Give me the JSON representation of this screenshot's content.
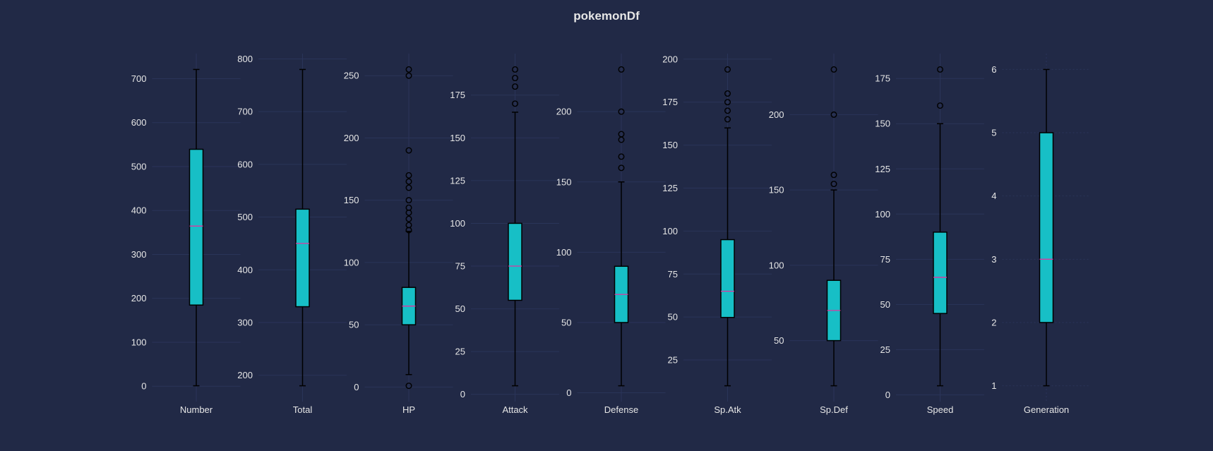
{
  "chart_data": {
    "type": "boxplot",
    "title": "pokemonDf",
    "colors": {
      "background": "#212946",
      "grid": "#2A3459",
      "box": "#17BFC6",
      "median": "#E0359F",
      "line": "#000000",
      "text": "#E6E6E6"
    },
    "panels": [
      {
        "label": "Number",
        "whislo": 1,
        "q1": 184.75,
        "med": 364.5,
        "q3": 539.25,
        "whishi": 721,
        "fliers": [],
        "ylim": [
          -35,
          757
        ],
        "ticks": [
          0,
          100,
          200,
          300,
          400,
          500,
          600,
          700
        ]
      },
      {
        "label": "Total",
        "whislo": 180,
        "q1": 330,
        "med": 450,
        "q3": 515,
        "whishi": 780,
        "fliers": [],
        "ylim": [
          150,
          810
        ],
        "ticks": [
          200,
          300,
          400,
          500,
          600,
          700,
          800
        ]
      },
      {
        "label": "HP",
        "whislo": 10,
        "q1": 50,
        "med": 65,
        "q3": 80,
        "whishi": 125,
        "fliers": [
          1,
          126,
          130,
          135,
          140,
          144,
          150,
          160,
          165,
          170,
          190,
          250,
          255
        ],
        "ylim": [
          -11.7,
          267.7
        ],
        "ticks": [
          0,
          50,
          100,
          150,
          200,
          250
        ]
      },
      {
        "label": "Attack",
        "whislo": 5,
        "q1": 55,
        "med": 75,
        "q3": 100,
        "whishi": 165,
        "fliers": [
          170,
          180,
          185,
          190
        ],
        "ylim": [
          -4.25,
          199.25
        ],
        "ticks": [
          0,
          25,
          50,
          75,
          100,
          125,
          150,
          175
        ]
      },
      {
        "label": "Defense",
        "whislo": 5,
        "q1": 50,
        "med": 70,
        "q3": 90,
        "whishi": 150,
        "fliers": [
          160,
          168,
          180,
          184,
          200,
          230
        ],
        "ylim": [
          -6.25,
          241.25
        ],
        "ticks": [
          0,
          50,
          100,
          150,
          200
        ]
      },
      {
        "label": "Sp.Atk",
        "whislo": 10,
        "q1": 49.75,
        "med": 65,
        "q3": 95,
        "whishi": 160,
        "fliers": [
          165,
          170,
          175,
          180,
          194
        ],
        "ylim": [
          0.8,
          203.2
        ],
        "ticks": [
          25,
          50,
          75,
          100,
          125,
          150,
          175,
          200
        ]
      },
      {
        "label": "Sp.Def",
        "whislo": 20,
        "q1": 50,
        "med": 70,
        "q3": 90,
        "whishi": 150,
        "fliers": [
          154,
          160,
          200,
          230
        ],
        "ylim": [
          9.5,
          240.5
        ],
        "ticks": [
          50,
          100,
          150,
          200
        ]
      },
      {
        "label": "Speed",
        "whislo": 5,
        "q1": 45,
        "med": 65,
        "q3": 90,
        "whishi": 150,
        "fliers": [
          160,
          180
        ],
        "ylim": [
          -3.75,
          188.75
        ],
        "ticks": [
          0,
          25,
          50,
          75,
          100,
          125,
          150,
          175
        ]
      },
      {
        "label": "Generation",
        "whislo": 1,
        "q1": 2,
        "med": 3,
        "q3": 5,
        "whishi": 6,
        "fliers": [],
        "ylim": [
          0.75,
          6.25
        ],
        "ticks": [
          1,
          2,
          3,
          4,
          5,
          6
        ]
      }
    ]
  }
}
